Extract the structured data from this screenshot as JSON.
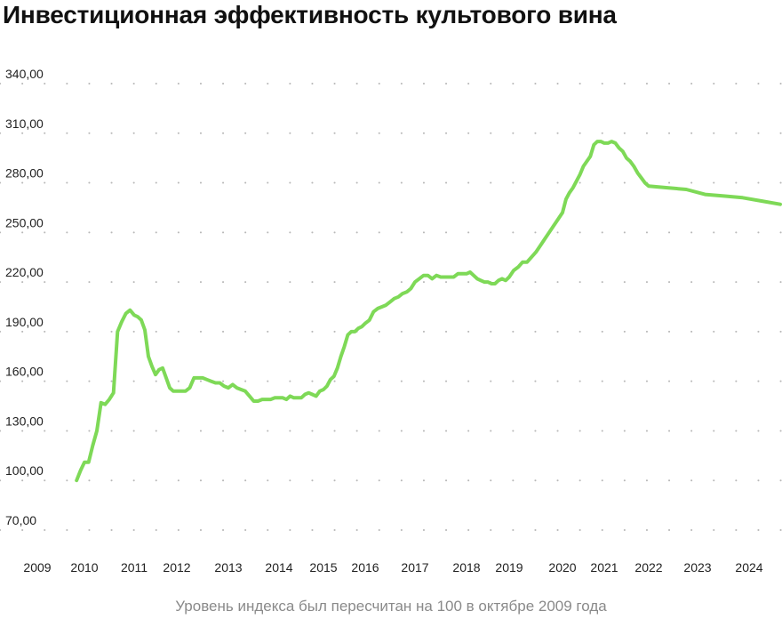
{
  "chart_data": {
    "type": "line",
    "title": "Инвестиционная эффективность культового вина",
    "subtitle": "Уровень индекса был пересчитан на 100 в октябре 2009 года",
    "xlabel": "",
    "ylabel": "",
    "x_tick_labels": [
      "2009",
      "2010",
      "2011",
      "2012",
      "2013",
      "2014",
      "2015",
      "2016",
      "2017",
      "2018",
      "2019",
      "2020",
      "2021",
      "2022",
      "2023",
      "2024"
    ],
    "y_tick_labels": [
      "340,00",
      "310,00",
      "280,00",
      "250,00",
      "220,00",
      "190,00",
      "160,00",
      "130,00",
      "100,00",
      "70,00"
    ],
    "y_ticks": [
      340,
      310,
      280,
      250,
      220,
      190,
      160,
      130,
      100,
      70
    ],
    "ylim": [
      70,
      340
    ],
    "grid": "dotted-horizontal",
    "colors": {
      "line": "#7ed957"
    },
    "series": [
      {
        "values": [
          {
            "x": "2009-11",
            "y": 100
          },
          {
            "x": "2009-12",
            "y": 106
          },
          {
            "x": "2010-01",
            "y": 111
          },
          {
            "x": "2010-02",
            "y": 111
          },
          {
            "x": "2010-03",
            "y": 121
          },
          {
            "x": "2010-04",
            "y": 130
          },
          {
            "x": "2010-05",
            "y": 147
          },
          {
            "x": "2010-06",
            "y": 146
          },
          {
            "x": "2010-07",
            "y": 149
          },
          {
            "x": "2010-08",
            "y": 153
          },
          {
            "x": "2010-09",
            "y": 190
          },
          {
            "x": "2010-10",
            "y": 196
          },
          {
            "x": "2010-11",
            "y": 201
          },
          {
            "x": "2010-12",
            "y": 203
          },
          {
            "x": "2011-01",
            "y": 200
          },
          {
            "x": "2011-02",
            "y": 199
          },
          {
            "x": "2011-03",
            "y": 197
          },
          {
            "x": "2011-04",
            "y": 191
          },
          {
            "x": "2011-05",
            "y": 175
          },
          {
            "x": "2011-06",
            "y": 169
          },
          {
            "x": "2011-07",
            "y": 164
          },
          {
            "x": "2011-08",
            "y": 167
          },
          {
            "x": "2011-09",
            "y": 168
          },
          {
            "x": "2011-10",
            "y": 162
          },
          {
            "x": "2011-11",
            "y": 156
          },
          {
            "x": "2011-12",
            "y": 154
          },
          {
            "x": "2012-01",
            "y": 154
          },
          {
            "x": "2012-02",
            "y": 154
          },
          {
            "x": "2012-03",
            "y": 154
          },
          {
            "x": "2012-04",
            "y": 156
          },
          {
            "x": "2012-05",
            "y": 162
          },
          {
            "x": "2012-06",
            "y": 162
          },
          {
            "x": "2012-07",
            "y": 162
          },
          {
            "x": "2012-08",
            "y": 161
          },
          {
            "x": "2012-09",
            "y": 160
          },
          {
            "x": "2012-10",
            "y": 159
          },
          {
            "x": "2012-11",
            "y": 159
          },
          {
            "x": "2012-12",
            "y": 157
          },
          {
            "x": "2013-01",
            "y": 156
          },
          {
            "x": "2013-02",
            "y": 158
          },
          {
            "x": "2013-03",
            "y": 156
          },
          {
            "x": "2013-04",
            "y": 155
          },
          {
            "x": "2013-05",
            "y": 154
          },
          {
            "x": "2013-06",
            "y": 151
          },
          {
            "x": "2013-07",
            "y": 148
          },
          {
            "x": "2013-08",
            "y": 148
          },
          {
            "x": "2013-09",
            "y": 149
          },
          {
            "x": "2013-10",
            "y": 149
          },
          {
            "x": "2013-11",
            "y": 149
          },
          {
            "x": "2013-12",
            "y": 150
          },
          {
            "x": "2014-01",
            "y": 150
          },
          {
            "x": "2014-02",
            "y": 150
          },
          {
            "x": "2014-03",
            "y": 149
          },
          {
            "x": "2014-04",
            "y": 151
          },
          {
            "x": "2014-05",
            "y": 150
          },
          {
            "x": "2014-06",
            "y": 150
          },
          {
            "x": "2014-07",
            "y": 150
          },
          {
            "x": "2014-08",
            "y": 152
          },
          {
            "x": "2014-09",
            "y": 153
          },
          {
            "x": "2014-10",
            "y": 152
          },
          {
            "x": "2014-11",
            "y": 151
          },
          {
            "x": "2014-12",
            "y": 154
          },
          {
            "x": "2015-01",
            "y": 155
          },
          {
            "x": "2015-02",
            "y": 157
          },
          {
            "x": "2015-03",
            "y": 161
          },
          {
            "x": "2015-04",
            "y": 163
          },
          {
            "x": "2015-05",
            "y": 168
          },
          {
            "x": "2015-06",
            "y": 175
          },
          {
            "x": "2015-07",
            "y": 181
          },
          {
            "x": "2015-08",
            "y": 188
          },
          {
            "x": "2015-09",
            "y": 190
          },
          {
            "x": "2015-10",
            "y": 190
          },
          {
            "x": "2015-11",
            "y": 192
          },
          {
            "x": "2015-12",
            "y": 193
          },
          {
            "x": "2016-01",
            "y": 195
          },
          {
            "x": "2016-02",
            "y": 197
          },
          {
            "x": "2016-03",
            "y": 202
          },
          {
            "x": "2016-04",
            "y": 204
          },
          {
            "x": "2016-05",
            "y": 205
          },
          {
            "x": "2016-06",
            "y": 206
          },
          {
            "x": "2016-07",
            "y": 208
          },
          {
            "x": "2016-08",
            "y": 210
          },
          {
            "x": "2016-09",
            "y": 211
          },
          {
            "x": "2016-10",
            "y": 213
          },
          {
            "x": "2016-11",
            "y": 214
          },
          {
            "x": "2016-12",
            "y": 216
          },
          {
            "x": "2017-01",
            "y": 220
          },
          {
            "x": "2017-02",
            "y": 222
          },
          {
            "x": "2017-03",
            "y": 224
          },
          {
            "x": "2017-04",
            "y": 224
          },
          {
            "x": "2017-05",
            "y": 222
          },
          {
            "x": "2017-06",
            "y": 224
          },
          {
            "x": "2017-07",
            "y": 223
          },
          {
            "x": "2017-08",
            "y": 223
          },
          {
            "x": "2017-09",
            "y": 223
          },
          {
            "x": "2017-10",
            "y": 223
          },
          {
            "x": "2017-11",
            "y": 225
          },
          {
            "x": "2017-12",
            "y": 225
          },
          {
            "x": "2018-01",
            "y": 225
          },
          {
            "x": "2018-02",
            "y": 226
          },
          {
            "x": "2018-03",
            "y": 224
          },
          {
            "x": "2018-04",
            "y": 222
          },
          {
            "x": "2018-05",
            "y": 221
          },
          {
            "x": "2018-06",
            "y": 220
          },
          {
            "x": "2018-07",
            "y": 220
          },
          {
            "x": "2018-08",
            "y": 219
          },
          {
            "x": "2018-09",
            "y": 219
          },
          {
            "x": "2018-10",
            "y": 221
          },
          {
            "x": "2018-11",
            "y": 222
          },
          {
            "x": "2018-12",
            "y": 221
          },
          {
            "x": "2019-01",
            "y": 223
          },
          {
            "x": "2019-02",
            "y": 227
          },
          {
            "x": "2019-03",
            "y": 229
          },
          {
            "x": "2019-04",
            "y": 232
          },
          {
            "x": "2019-05",
            "y": 232
          },
          {
            "x": "2019-06",
            "y": 235
          },
          {
            "x": "2019-07",
            "y": 238
          },
          {
            "x": "2019-08",
            "y": 242
          },
          {
            "x": "2019-09",
            "y": 246
          },
          {
            "x": "2019-10",
            "y": 250
          },
          {
            "x": "2019-11",
            "y": 254
          },
          {
            "x": "2019-12",
            "y": 258
          },
          {
            "x": "2020-01",
            "y": 262
          },
          {
            "x": "2020-02",
            "y": 270
          },
          {
            "x": "2020-03",
            "y": 274
          },
          {
            "x": "2020-04",
            "y": 277
          },
          {
            "x": "2020-05",
            "y": 281
          },
          {
            "x": "2020-06",
            "y": 285
          },
          {
            "x": "2020-07",
            "y": 290
          },
          {
            "x": "2020-08",
            "y": 293
          },
          {
            "x": "2020-09",
            "y": 296
          },
          {
            "x": "2020-10",
            "y": 303
          },
          {
            "x": "2020-11",
            "y": 305
          },
          {
            "x": "2020-12",
            "y": 305
          },
          {
            "x": "2021-01",
            "y": 304
          },
          {
            "x": "2021-02",
            "y": 304
          },
          {
            "x": "2021-03",
            "y": 305
          },
          {
            "x": "2021-04",
            "y": 304
          },
          {
            "x": "2021-05",
            "y": 301
          },
          {
            "x": "2021-06",
            "y": 299
          },
          {
            "x": "2021-07",
            "y": 295
          },
          {
            "x": "2021-08",
            "y": 293
          },
          {
            "x": "2021-09",
            "y": 290
          },
          {
            "x": "2021-10",
            "y": 286
          },
          {
            "x": "2021-11",
            "y": 283
          },
          {
            "x": "2021-12",
            "y": 280
          },
          {
            "x": "2022-01",
            "y": 278
          },
          {
            "x": "2022-02",
            "y": 277
          },
          {
            "x": "2022-03",
            "y": 276
          },
          {
            "x": "2022-04",
            "y": 273
          },
          {
            "x": "2022-05",
            "y": 272
          },
          {
            "x": "2022-06",
            "y": 271
          },
          {
            "x": "2022-07",
            "y": 269
          },
          {
            "x": "2022-08",
            "y": 267
          }
        ]
      }
    ]
  }
}
